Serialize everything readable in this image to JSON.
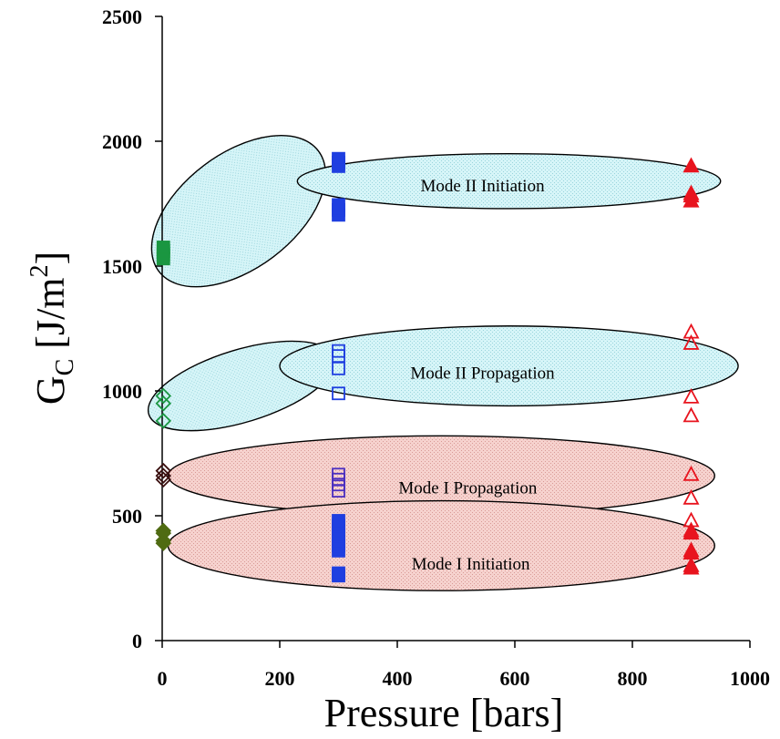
{
  "chart_data": {
    "type": "scatter",
    "title": "",
    "xlabel": "Pressure  [bars]",
    "ylabel": {
      "main": "G",
      "subscript": "C",
      "unit_prefix": " [J/m",
      "unit_superscript": "2",
      "unit_suffix": "]"
    },
    "xlim": [
      0,
      1000
    ],
    "ylim": [
      0,
      2500
    ],
    "x_ticks": [
      "0",
      "200",
      "400",
      "600",
      "800",
      "1000"
    ],
    "y_ticks": [
      "0",
      "500",
      "1000",
      "1500",
      "2000",
      "2500"
    ],
    "grid": false,
    "regions": [
      {
        "name": "Mode II Initiation",
        "fill": "#c8f0f4"
      },
      {
        "name": "Mode II Propagation",
        "fill": "#c8f0f4"
      },
      {
        "name": "Mode I Propagation",
        "fill": "#f2c4c0"
      },
      {
        "name": "Mode I Initiation",
        "fill": "#f2c4c0"
      }
    ],
    "series": [
      {
        "marker": "square-filled",
        "color": "#1a9641",
        "points": [
          [
            2,
            1530
          ],
          [
            2,
            1545
          ],
          [
            2,
            1560
          ],
          [
            2,
            1575
          ]
        ]
      },
      {
        "marker": "square-filled",
        "color": "#1f3fe0",
        "points": [
          [
            300,
            1705
          ],
          [
            300,
            1725
          ],
          [
            300,
            1745
          ],
          [
            300,
            1900
          ],
          [
            300,
            1915
          ],
          [
            300,
            1930
          ]
        ]
      },
      {
        "marker": "triangle-filled",
        "color": "#e8141e",
        "points": [
          [
            900,
            1760
          ],
          [
            900,
            1780
          ],
          [
            900,
            1790
          ],
          [
            900,
            1900
          ]
        ]
      },
      {
        "marker": "diamond-open",
        "color": "#1a9641",
        "points": [
          [
            2,
            880
          ],
          [
            2,
            950
          ],
          [
            2,
            980
          ]
        ]
      },
      {
        "marker": "square-open",
        "color": "#1f3fe0",
        "points": [
          [
            300,
            990
          ],
          [
            300,
            1090
          ],
          [
            300,
            1140
          ],
          [
            300,
            1160
          ]
        ]
      },
      {
        "marker": "triangle-open",
        "color": "#e8141e",
        "points": [
          [
            900,
            900
          ],
          [
            900,
            975
          ],
          [
            900,
            1190
          ],
          [
            900,
            1235
          ]
        ]
      },
      {
        "marker": "diamond-open",
        "color": "#3b1010",
        "points": [
          [
            2,
            645
          ],
          [
            2,
            660
          ],
          [
            2,
            680
          ]
        ]
      },
      {
        "marker": "square-open",
        "color": "#4b2fc0",
        "points": [
          [
            300,
            600
          ],
          [
            300,
            625
          ],
          [
            300,
            645
          ],
          [
            300,
            665
          ]
        ]
      },
      {
        "marker": "triangle-open",
        "color": "#e8141e",
        "points": [
          [
            900,
            480
          ],
          [
            900,
            570
          ],
          [
            900,
            665
          ]
        ]
      },
      {
        "marker": "diamond-filled",
        "color": "#4f6b12",
        "points": [
          [
            2,
            390
          ],
          [
            2,
            400
          ],
          [
            2,
            430
          ],
          [
            2,
            440
          ]
        ]
      },
      {
        "marker": "square-filled",
        "color": "#1f3fe0",
        "points": [
          [
            300,
            260
          ],
          [
            300,
            270
          ],
          [
            300,
            360
          ],
          [
            300,
            380
          ],
          [
            300,
            400
          ],
          [
            300,
            420
          ],
          [
            300,
            440
          ],
          [
            300,
            460
          ],
          [
            300,
            480
          ]
        ]
      },
      {
        "marker": "triangle-filled",
        "color": "#e8141e",
        "points": [
          [
            900,
            290
          ],
          [
            900,
            300
          ],
          [
            900,
            350
          ],
          [
            900,
            360
          ],
          [
            900,
            430
          ],
          [
            900,
            440
          ]
        ]
      }
    ]
  }
}
